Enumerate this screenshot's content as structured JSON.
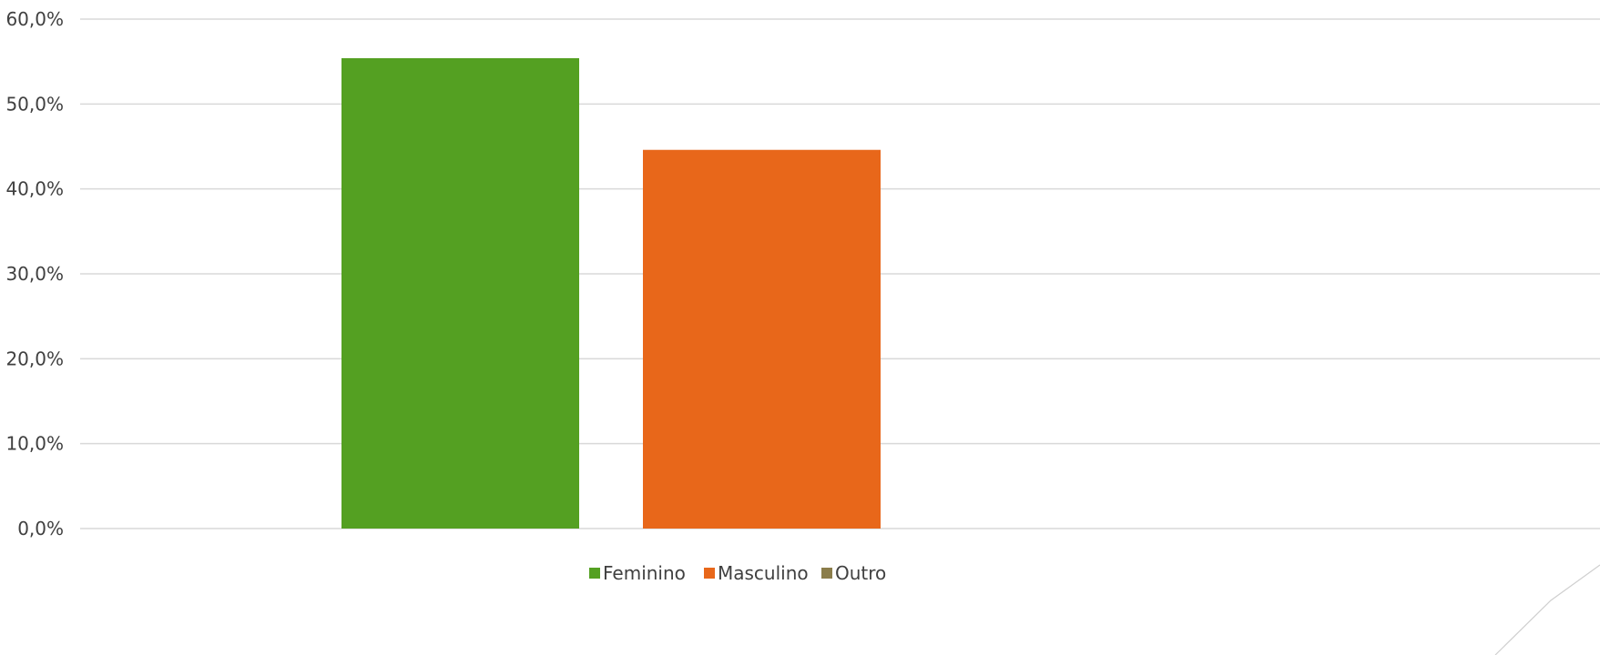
{
  "chart_data": {
    "type": "bar",
    "categories": [
      ""
    ],
    "series": [
      {
        "name": "Feminino",
        "values": [
          55.4
        ],
        "color": "#54A022"
      },
      {
        "name": "Masculino",
        "values": [
          44.6
        ],
        "color": "#E8671A"
      },
      {
        "name": "Outro",
        "values": [
          0.0
        ],
        "color": "#8B7D4A"
      }
    ],
    "ylim": [
      0,
      60
    ],
    "yticks": [
      0,
      10,
      20,
      30,
      40,
      50,
      60
    ],
    "ytick_labels": [
      "0,0%",
      "10,0%",
      "20,0%",
      "30,0%",
      "40,0%",
      "50,0%",
      "60,0%"
    ],
    "grid": true,
    "legend_position": "bottom",
    "title": "",
    "xlabel": "",
    "ylabel": ""
  }
}
